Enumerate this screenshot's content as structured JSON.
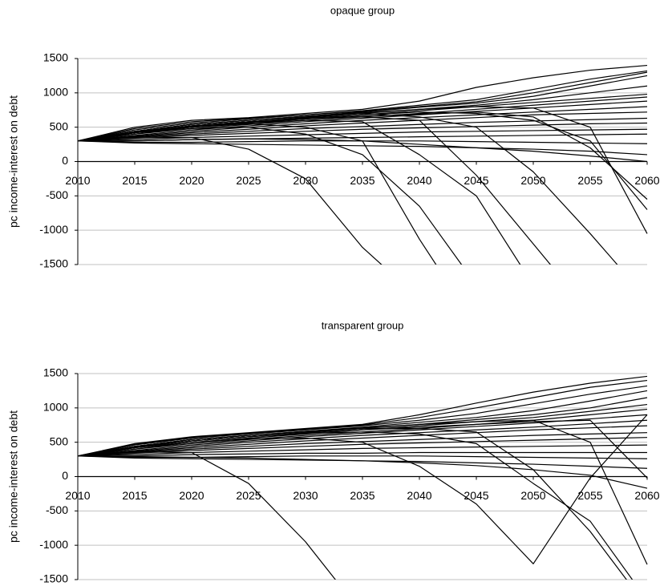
{
  "chart_data": [
    {
      "type": "line",
      "title": "opaque group",
      "y_label": "pc income-interest on debt",
      "color": "#000000",
      "grid": true,
      "x": [
        2010,
        2015,
        2020,
        2025,
        2030,
        2035,
        2040,
        2045,
        2050,
        2055,
        2060
      ],
      "xlim": [
        2010,
        2060
      ],
      "xticks": [
        2010,
        2015,
        2020,
        2025,
        2030,
        2035,
        2040,
        2045,
        2050,
        2055,
        2060
      ],
      "ylim": [
        -1500,
        1500
      ],
      "yticks": [
        -1500,
        -1000,
        -500,
        0,
        500,
        1000,
        1500
      ],
      "series": [
        {
          "values": [
            300,
            500,
            600,
            640,
            700,
            760,
            880,
            1080,
            1220,
            1330,
            1400
          ]
        },
        {
          "values": [
            300,
            480,
            580,
            630,
            680,
            740,
            820,
            900,
            1050,
            1200,
            1320
          ]
        },
        {
          "values": [
            300,
            460,
            560,
            620,
            680,
            730,
            800,
            870,
            1000,
            1150,
            1300
          ]
        },
        {
          "values": [
            300,
            440,
            540,
            600,
            660,
            720,
            790,
            850,
            950,
            1100,
            1250
          ]
        },
        {
          "values": [
            300,
            420,
            520,
            580,
            640,
            700,
            760,
            820,
            900,
            1000,
            1100
          ]
        },
        {
          "values": [
            300,
            400,
            500,
            560,
            620,
            680,
            740,
            800,
            860,
            920,
            980
          ]
        },
        {
          "values": [
            300,
            400,
            480,
            540,
            600,
            650,
            700,
            760,
            820,
            880,
            940
          ]
        },
        {
          "values": [
            300,
            380,
            460,
            520,
            580,
            630,
            680,
            730,
            780,
            830,
            880
          ]
        },
        {
          "values": [
            300,
            370,
            440,
            500,
            550,
            600,
            640,
            680,
            720,
            760,
            800
          ]
        },
        {
          "values": [
            300,
            360,
            420,
            470,
            520,
            560,
            600,
            640,
            680,
            700,
            720
          ]
        },
        {
          "values": [
            300,
            350,
            400,
            440,
            480,
            510,
            540,
            570,
            590,
            610,
            630
          ]
        },
        {
          "values": [
            300,
            340,
            380,
            410,
            440,
            470,
            490,
            510,
            530,
            550,
            560
          ]
        },
        {
          "values": [
            300,
            320,
            350,
            370,
            390,
            410,
            430,
            440,
            450,
            460,
            470
          ]
        },
        {
          "values": [
            300,
            300,
            320,
            330,
            340,
            350,
            360,
            370,
            380,
            390,
            400
          ]
        },
        {
          "values": [
            300,
            280,
            280,
            290,
            300,
            300,
            300,
            290,
            280,
            270,
            260
          ]
        },
        {
          "values": [
            300,
            270,
            260,
            250,
            240,
            230,
            220,
            200,
            180,
            150,
            100
          ]
        },
        {
          "values": [
            300,
            300,
            320,
            330,
            320,
            300,
            250,
            200,
            150,
            80,
            0
          ]
        },
        {
          "values": [
            300,
            350,
            350,
            180,
            -250,
            -1250,
            -2000,
            null,
            null,
            null,
            null
          ]
        },
        {
          "values": [
            300,
            420,
            480,
            500,
            400,
            100,
            -650,
            -1800,
            null,
            null,
            null
          ]
        },
        {
          "values": [
            300,
            420,
            500,
            550,
            500,
            300,
            -1130,
            -2400,
            null,
            null,
            null
          ]
        },
        {
          "values": [
            300,
            420,
            500,
            560,
            600,
            580,
            100,
            -500,
            -1800,
            null,
            null
          ]
        },
        {
          "values": [
            300,
            430,
            520,
            580,
            630,
            650,
            600,
            -200,
            -1200,
            -2200,
            null
          ]
        },
        {
          "values": [
            300,
            440,
            540,
            600,
            650,
            700,
            650,
            500,
            -150,
            -1050,
            -2000
          ]
        },
        {
          "values": [
            300,
            440,
            540,
            600,
            660,
            710,
            760,
            800,
            780,
            500,
            -1050
          ]
        },
        {
          "values": [
            300,
            430,
            520,
            580,
            630,
            680,
            720,
            700,
            600,
            300,
            -700
          ]
        },
        {
          "values": [
            300,
            420,
            510,
            570,
            620,
            660,
            690,
            720,
            650,
            200,
            -550
          ]
        }
      ]
    },
    {
      "type": "line",
      "title": "transparent group",
      "y_label": "pc income-interest on debt",
      "color": "#000000",
      "grid": true,
      "x": [
        2010,
        2015,
        2020,
        2025,
        2030,
        2035,
        2040,
        2045,
        2050,
        2055,
        2060
      ],
      "xlim": [
        2010,
        2060
      ],
      "xticks": [
        2010,
        2015,
        2020,
        2025,
        2030,
        2035,
        2040,
        2045,
        2050,
        2055,
        2060
      ],
      "ylim": [
        -1500,
        1500
      ],
      "yticks": [
        -1500,
        -1000,
        -500,
        0,
        500,
        1000,
        1500
      ],
      "series": [
        {
          "values": [
            300,
            480,
            580,
            640,
            700,
            760,
            900,
            1070,
            1230,
            1360,
            1460
          ]
        },
        {
          "values": [
            300,
            470,
            570,
            630,
            690,
            750,
            860,
            1000,
            1150,
            1300,
            1400
          ]
        },
        {
          "values": [
            300,
            460,
            560,
            620,
            680,
            740,
            820,
            920,
            1060,
            1200,
            1320
          ]
        },
        {
          "values": [
            300,
            440,
            540,
            600,
            660,
            720,
            790,
            860,
            960,
            1100,
            1250
          ]
        },
        {
          "values": [
            300,
            420,
            520,
            580,
            640,
            700,
            760,
            830,
            900,
            1000,
            1150
          ]
        },
        {
          "values": [
            300,
            400,
            500,
            560,
            620,
            680,
            740,
            800,
            860,
            950,
            1050
          ]
        },
        {
          "values": [
            300,
            400,
            480,
            540,
            600,
            650,
            700,
            760,
            820,
            900,
            980
          ]
        },
        {
          "values": [
            300,
            380,
            460,
            520,
            580,
            630,
            680,
            730,
            780,
            840,
            900
          ]
        },
        {
          "values": [
            300,
            370,
            440,
            500,
            550,
            600,
            640,
            680,
            720,
            770,
            820
          ]
        },
        {
          "values": [
            300,
            360,
            420,
            470,
            520,
            560,
            600,
            640,
            680,
            710,
            740
          ]
        },
        {
          "values": [
            300,
            350,
            400,
            440,
            480,
            510,
            540,
            570,
            600,
            620,
            640
          ]
        },
        {
          "values": [
            300,
            340,
            380,
            410,
            440,
            470,
            490,
            510,
            530,
            550,
            570
          ]
        },
        {
          "values": [
            300,
            320,
            350,
            370,
            390,
            410,
            420,
            430,
            440,
            450,
            460
          ]
        },
        {
          "values": [
            300,
            300,
            320,
            330,
            340,
            340,
            350,
            350,
            350,
            350,
            350
          ]
        },
        {
          "values": [
            300,
            280,
            280,
            290,
            300,
            300,
            300,
            290,
            280,
            270,
            260
          ]
        },
        {
          "values": [
            300,
            270,
            260,
            250,
            240,
            230,
            220,
            200,
            180,
            150,
            120
          ]
        },
        {
          "values": [
            300,
            290,
            280,
            270,
            250,
            230,
            200,
            160,
            100,
            20,
            -170
          ]
        },
        {
          "values": [
            300,
            360,
            350,
            -100,
            -950,
            -2000,
            null,
            null,
            null,
            null,
            null
          ]
        },
        {
          "values": [
            300,
            420,
            500,
            550,
            560,
            500,
            150,
            -400,
            -1270,
            -20,
            900
          ]
        },
        {
          "values": [
            300,
            430,
            520,
            580,
            630,
            650,
            620,
            480,
            -100,
            -650,
            -1800
          ]
        },
        {
          "values": [
            300,
            440,
            540,
            600,
            650,
            700,
            700,
            650,
            100,
            -800,
            -1900
          ]
        },
        {
          "values": [
            300,
            440,
            540,
            600,
            660,
            710,
            760,
            800,
            820,
            500,
            -1280
          ]
        },
        {
          "values": [
            300,
            430,
            520,
            580,
            630,
            680,
            720,
            760,
            800,
            820,
            -20
          ]
        }
      ]
    }
  ]
}
